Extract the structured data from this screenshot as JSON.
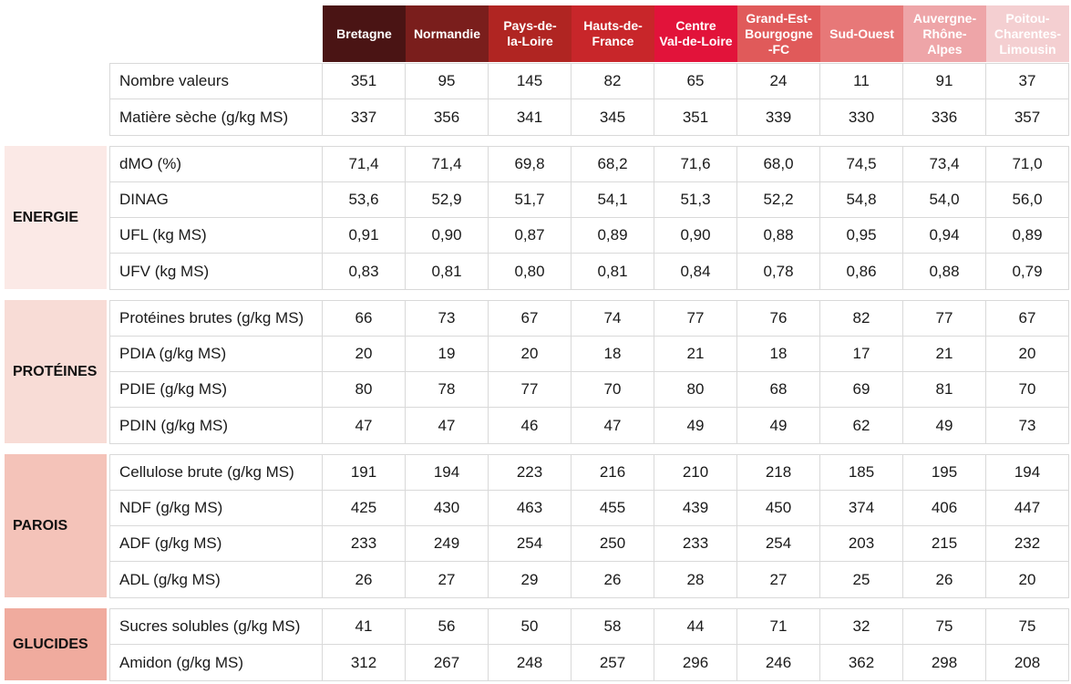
{
  "headers": [
    {
      "label": "Bretagne",
      "bg": "#4a1414"
    },
    {
      "label": "Normandie",
      "bg": "#7a1e1c"
    },
    {
      "label": "Pays-de-\nla-Loire",
      "bg": "#b02522"
    },
    {
      "label": "Hauts-de-\nFrance",
      "bg": "#c8262a"
    },
    {
      "label": "Centre\nVal-de-Loire",
      "bg": "#e2133a"
    },
    {
      "label": "Grand-Est-\nBourgogne\n-FC",
      "bg": "#e05a5a"
    },
    {
      "label": "Sud-Ouest",
      "bg": "#e77878"
    },
    {
      "label": "Auvergne-\nRhône-\nAlpes",
      "bg": "#eea5a8"
    },
    {
      "label": "Poitou-\nCharentes-\nLimousin",
      "bg": "#f4cfd1"
    }
  ],
  "sections": [
    {
      "id": "general",
      "title": "",
      "color": "#ffffff",
      "rows": [
        {
          "label": "Nombre valeurs",
          "values": [
            "351",
            "95",
            "145",
            "82",
            "65",
            "24",
            "11",
            "91",
            "37"
          ]
        },
        {
          "label": "Matière sèche (g/kg MS)",
          "values": [
            "337",
            "356",
            "341",
            "345",
            "351",
            "339",
            "330",
            "336",
            "357"
          ]
        }
      ]
    },
    {
      "id": "energie",
      "title": "ENERGIE",
      "color": "#fbe9e6",
      "rows": [
        {
          "label": "dMO (%)",
          "values": [
            "71,4",
            "71,4",
            "69,8",
            "68,2",
            "71,6",
            "68,0",
            "74,5",
            "73,4",
            "71,0"
          ]
        },
        {
          "label": "DINAG",
          "values": [
            "53,6",
            "52,9",
            "51,7",
            "54,1",
            "51,3",
            "52,2",
            "54,8",
            "54,0",
            "56,0"
          ]
        },
        {
          "label": "UFL (kg MS)",
          "values": [
            "0,91",
            "0,90",
            "0,87",
            "0,89",
            "0,90",
            "0,88",
            "0,95",
            "0,94",
            "0,89"
          ]
        },
        {
          "label": "UFV (kg MS)",
          "values": [
            "0,83",
            "0,81",
            "0,80",
            "0,81",
            "0,84",
            "0,78",
            "0,86",
            "0,88",
            "0,79"
          ]
        }
      ]
    },
    {
      "id": "proteines",
      "title": "PROTÉINES",
      "color": "#f8dcd6",
      "rows": [
        {
          "label": "Protéines brutes (g/kg MS)",
          "values": [
            "66",
            "73",
            "67",
            "74",
            "77",
            "76",
            "82",
            "77",
            "67"
          ]
        },
        {
          "label": "PDIA (g/kg MS)",
          "values": [
            "20",
            "19",
            "20",
            "18",
            "21",
            "18",
            "17",
            "21",
            "20"
          ]
        },
        {
          "label": "PDIE (g/kg MS)",
          "values": [
            "80",
            "78",
            "77",
            "70",
            "80",
            "68",
            "69",
            "81",
            "70"
          ]
        },
        {
          "label": "PDIN (g/kg MS)",
          "values": [
            "47",
            "47",
            "46",
            "47",
            "49",
            "49",
            "62",
            "49",
            "73"
          ]
        }
      ]
    },
    {
      "id": "parois",
      "title": "PAROIS",
      "color": "#f4c3b9",
      "rows": [
        {
          "label": "Cellulose brute (g/kg MS)",
          "values": [
            "191",
            "194",
            "223",
            "216",
            "210",
            "218",
            "185",
            "195",
            "194"
          ]
        },
        {
          "label": "NDF (g/kg MS)",
          "values": [
            "425",
            "430",
            "463",
            "455",
            "439",
            "450",
            "374",
            "406",
            "447"
          ]
        },
        {
          "label": "ADF (g/kg MS)",
          "values": [
            "233",
            "249",
            "254",
            "250",
            "233",
            "254",
            "203",
            "215",
            "232"
          ]
        },
        {
          "label": "ADL (g/kg MS)",
          "values": [
            "26",
            "27",
            "29",
            "26",
            "28",
            "27",
            "25",
            "26",
            "20"
          ]
        }
      ]
    },
    {
      "id": "glucides",
      "title": "GLUCIDES",
      "color": "#f0ab9e",
      "rows": [
        {
          "label": "Sucres solubles (g/kg MS)",
          "values": [
            "41",
            "56",
            "50",
            "58",
            "44",
            "71",
            "32",
            "75",
            "75"
          ]
        },
        {
          "label": "Amidon (g/kg MS)",
          "values": [
            "312",
            "267",
            "248",
            "257",
            "296",
            "246",
            "362",
            "298",
            "208"
          ]
        }
      ]
    }
  ]
}
